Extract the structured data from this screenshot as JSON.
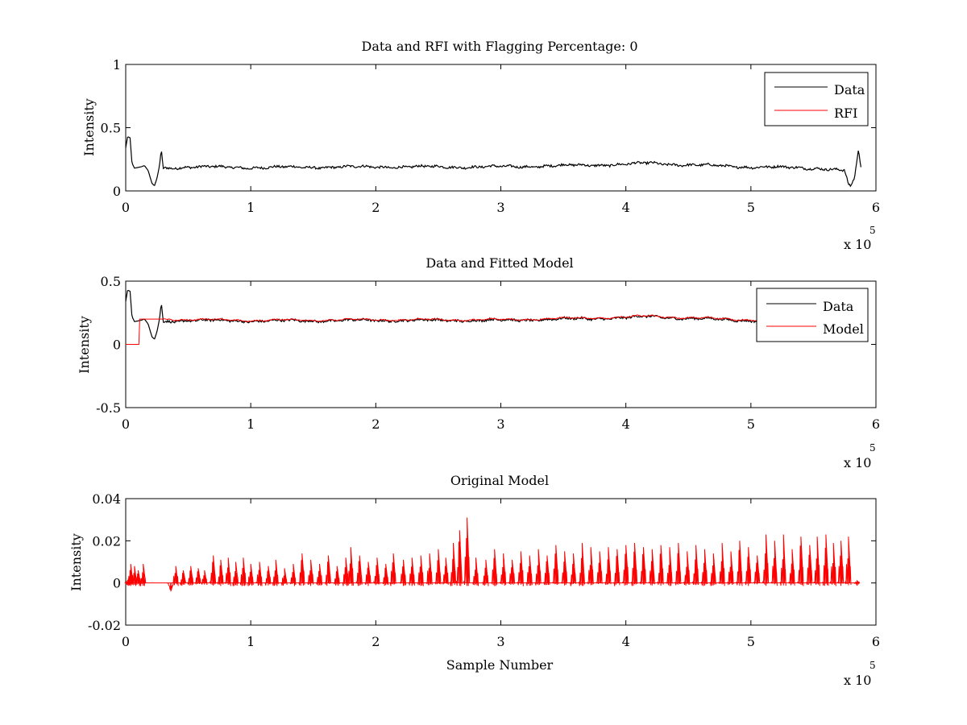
{
  "chart_data": [
    {
      "type": "line",
      "title": "Data and RFI with Flagging Percentage: 0",
      "xlabel": "",
      "ylabel": "Intensity",
      "xlim": [
        0,
        600000
      ],
      "ylim": [
        0,
        1
      ],
      "xticks": [
        0,
        1,
        2,
        3,
        4,
        5,
        6
      ],
      "xtick_labels": [
        "0",
        "1",
        "2",
        "3",
        "4",
        "5",
        "6"
      ],
      "x_multiplier_label": "x 10",
      "x_multiplier_exp": "5",
      "yticks": [
        0,
        0.5,
        1
      ],
      "ytick_labels": [
        "0",
        "0.5",
        "1"
      ],
      "legend": {
        "placement": "top-right",
        "entries": [
          "Data",
          "RFI"
        ]
      },
      "series": [
        {
          "name": "Data",
          "color": "#000000",
          "profile": [
            [
              0,
              0.34
            ],
            [
              1500,
              0.43
            ],
            [
              3500,
              0.42
            ],
            [
              5000,
              0.22
            ],
            [
              7000,
              0.18
            ],
            [
              12000,
              0.19
            ],
            [
              15000,
              0.2
            ],
            [
              18000,
              0.16
            ],
            [
              21000,
              0.06
            ],
            [
              23000,
              0.04
            ],
            [
              25000,
              0.1
            ],
            [
              27000,
              0.2
            ],
            [
              28500,
              0.33
            ],
            [
              30000,
              0.18
            ],
            [
              50000,
              0.19
            ],
            [
              100000,
              0.185
            ],
            [
              200000,
              0.19
            ],
            [
              300000,
              0.19
            ],
            [
              350000,
              0.2
            ],
            [
              400000,
              0.21
            ],
            [
              420000,
              0.22
            ],
            [
              450000,
              0.205
            ],
            [
              500000,
              0.19
            ],
            [
              555000,
              0.18
            ],
            [
              575000,
              0.16
            ],
            [
              578000,
              0.05
            ],
            [
              580000,
              0.03
            ],
            [
              583000,
              0.1
            ],
            [
              586000,
              0.33
            ],
            [
              588000,
              0.18
            ]
          ]
        },
        {
          "name": "RFI",
          "color": "#ff0000",
          "profile": []
        }
      ]
    },
    {
      "type": "line",
      "title": "Data and Fitted Model",
      "xlabel": "",
      "ylabel": "Intensity",
      "xlim": [
        0,
        600000
      ],
      "ylim": [
        -0.5,
        0.5
      ],
      "xticks": [
        0,
        1,
        2,
        3,
        4,
        5,
        6
      ],
      "xtick_labels": [
        "0",
        "1",
        "2",
        "3",
        "4",
        "5",
        "6"
      ],
      "x_multiplier_label": "x 10",
      "x_multiplier_exp": "5",
      "yticks": [
        -0.5,
        0,
        0.5
      ],
      "ytick_labels": [
        "-0.5",
        "0",
        "0.5"
      ],
      "legend": {
        "placement": "top-right",
        "entries": [
          "Data",
          "Model"
        ]
      },
      "series": [
        {
          "name": "Data",
          "color": "#000000",
          "profile": [
            [
              0,
              0.34
            ],
            [
              1500,
              0.43
            ],
            [
              3500,
              0.42
            ],
            [
              5000,
              0.22
            ],
            [
              7000,
              0.18
            ],
            [
              12000,
              0.19
            ],
            [
              15000,
              0.2
            ],
            [
              18000,
              0.16
            ],
            [
              21000,
              0.06
            ],
            [
              23000,
              0.04
            ],
            [
              25000,
              0.1
            ],
            [
              27000,
              0.2
            ],
            [
              28500,
              0.33
            ],
            [
              30000,
              0.18
            ],
            [
              50000,
              0.19
            ],
            [
              100000,
              0.185
            ],
            [
              200000,
              0.19
            ],
            [
              300000,
              0.19
            ],
            [
              350000,
              0.2
            ],
            [
              400000,
              0.21
            ],
            [
              420000,
              0.22
            ],
            [
              450000,
              0.205
            ],
            [
              500000,
              0.19
            ],
            [
              505000,
              0.19
            ]
          ]
        },
        {
          "name": "Model",
          "color": "#ff0000",
          "profile": [
            [
              0,
              0.0
            ],
            [
              10500,
              0.0
            ],
            [
              10600,
              0.2
            ],
            [
              30000,
              0.2
            ],
            [
              100000,
              0.19
            ],
            [
              200000,
              0.195
            ],
            [
              300000,
              0.195
            ],
            [
              350000,
              0.205
            ],
            [
              400000,
              0.215
            ],
            [
              420000,
              0.225
            ],
            [
              450000,
              0.21
            ],
            [
              500000,
              0.195
            ],
            [
              505000,
              0.195
            ]
          ]
        }
      ]
    },
    {
      "type": "line",
      "title": "Original Model",
      "xlabel": "Sample Number",
      "ylabel": "Intensity",
      "xlim": [
        0,
        600000
      ],
      "ylim": [
        -0.02,
        0.04
      ],
      "xticks": [
        0,
        1,
        2,
        3,
        4,
        5,
        6
      ],
      "xtick_labels": [
        "0",
        "1",
        "2",
        "3",
        "4",
        "5",
        "6"
      ],
      "x_multiplier_label": "x 10",
      "x_multiplier_exp": "5",
      "yticks": [
        -0.02,
        0,
        0.02,
        0.04
      ],
      "ytick_labels": [
        "-0.02",
        "0",
        "0.02",
        "0.04"
      ],
      "series": [
        {
          "name": "",
          "color": "#ff0000",
          "spikes": [
            [
              2000,
              0.002
            ],
            [
              4000,
              0.009
            ],
            [
              7000,
              0.008
            ],
            [
              10000,
              0.006
            ],
            [
              14000,
              0.009
            ],
            [
              36000,
              -0.004
            ],
            [
              40000,
              0.008
            ],
            [
              46000,
              0.006
            ],
            [
              52000,
              0.008
            ],
            [
              58000,
              0.007
            ],
            [
              63000,
              0.006
            ],
            [
              70000,
              0.013
            ],
            [
              76000,
              0.011
            ],
            [
              82000,
              0.012
            ],
            [
              88000,
              0.01
            ],
            [
              94000,
              0.012
            ],
            [
              100000,
              0.009
            ],
            [
              107000,
              0.01
            ],
            [
              114000,
              0.008
            ],
            [
              120000,
              0.011
            ],
            [
              127000,
              0.007
            ],
            [
              134000,
              0.009
            ],
            [
              141000,
              0.014
            ],
            [
              148000,
              0.011
            ],
            [
              155000,
              0.009
            ],
            [
              162000,
              0.013
            ],
            [
              169000,
              0.008
            ],
            [
              176000,
              0.012
            ],
            [
              180000,
              0.017
            ],
            [
              187000,
              0.013
            ],
            [
              194000,
              0.01
            ],
            [
              201000,
              0.012
            ],
            [
              208000,
              0.009
            ],
            [
              214000,
              0.014
            ],
            [
              222000,
              0.011
            ],
            [
              229000,
              0.012
            ],
            [
              236000,
              0.013
            ],
            [
              243000,
              0.014
            ],
            [
              250000,
              0.016
            ],
            [
              256000,
              0.012
            ],
            [
              262000,
              0.019
            ],
            [
              267000,
              0.025
            ],
            [
              273000,
              0.031
            ],
            [
              280000,
              0.012
            ],
            [
              288000,
              0.011
            ],
            [
              295000,
              0.016
            ],
            [
              302000,
              0.014
            ],
            [
              309000,
              0.011
            ],
            [
              316000,
              0.015
            ],
            [
              323000,
              0.013
            ],
            [
              330000,
              0.016
            ],
            [
              337000,
              0.013
            ],
            [
              344000,
              0.018
            ],
            [
              351000,
              0.015
            ],
            [
              358000,
              0.014
            ],
            [
              365000,
              0.019
            ],
            [
              372000,
              0.017
            ],
            [
              379000,
              0.015
            ],
            [
              386000,
              0.017
            ],
            [
              393000,
              0.016
            ],
            [
              400000,
              0.018
            ],
            [
              407000,
              0.019
            ],
            [
              414000,
              0.017
            ],
            [
              421000,
              0.016
            ],
            [
              428000,
              0.018
            ],
            [
              435000,
              0.017
            ],
            [
              442000,
              0.019
            ],
            [
              449000,
              0.015
            ],
            [
              456000,
              0.018
            ],
            [
              463000,
              0.016
            ],
            [
              470000,
              0.014
            ],
            [
              477000,
              0.019
            ],
            [
              484000,
              0.015
            ],
            [
              491000,
              0.02
            ],
            [
              498000,
              0.017
            ],
            [
              505000,
              0.013
            ],
            [
              512000,
              0.023
            ],
            [
              519000,
              0.02
            ],
            [
              526000,
              0.023
            ],
            [
              533000,
              0.016
            ],
            [
              540000,
              0.022
            ],
            [
              547000,
              0.018
            ],
            [
              553000,
              0.022
            ],
            [
              560000,
              0.023
            ],
            [
              566000,
              0.019
            ],
            [
              572000,
              0.02
            ],
            [
              578000,
              0.022
            ],
            [
              585000,
              0.001
            ]
          ]
        }
      ]
    }
  ]
}
